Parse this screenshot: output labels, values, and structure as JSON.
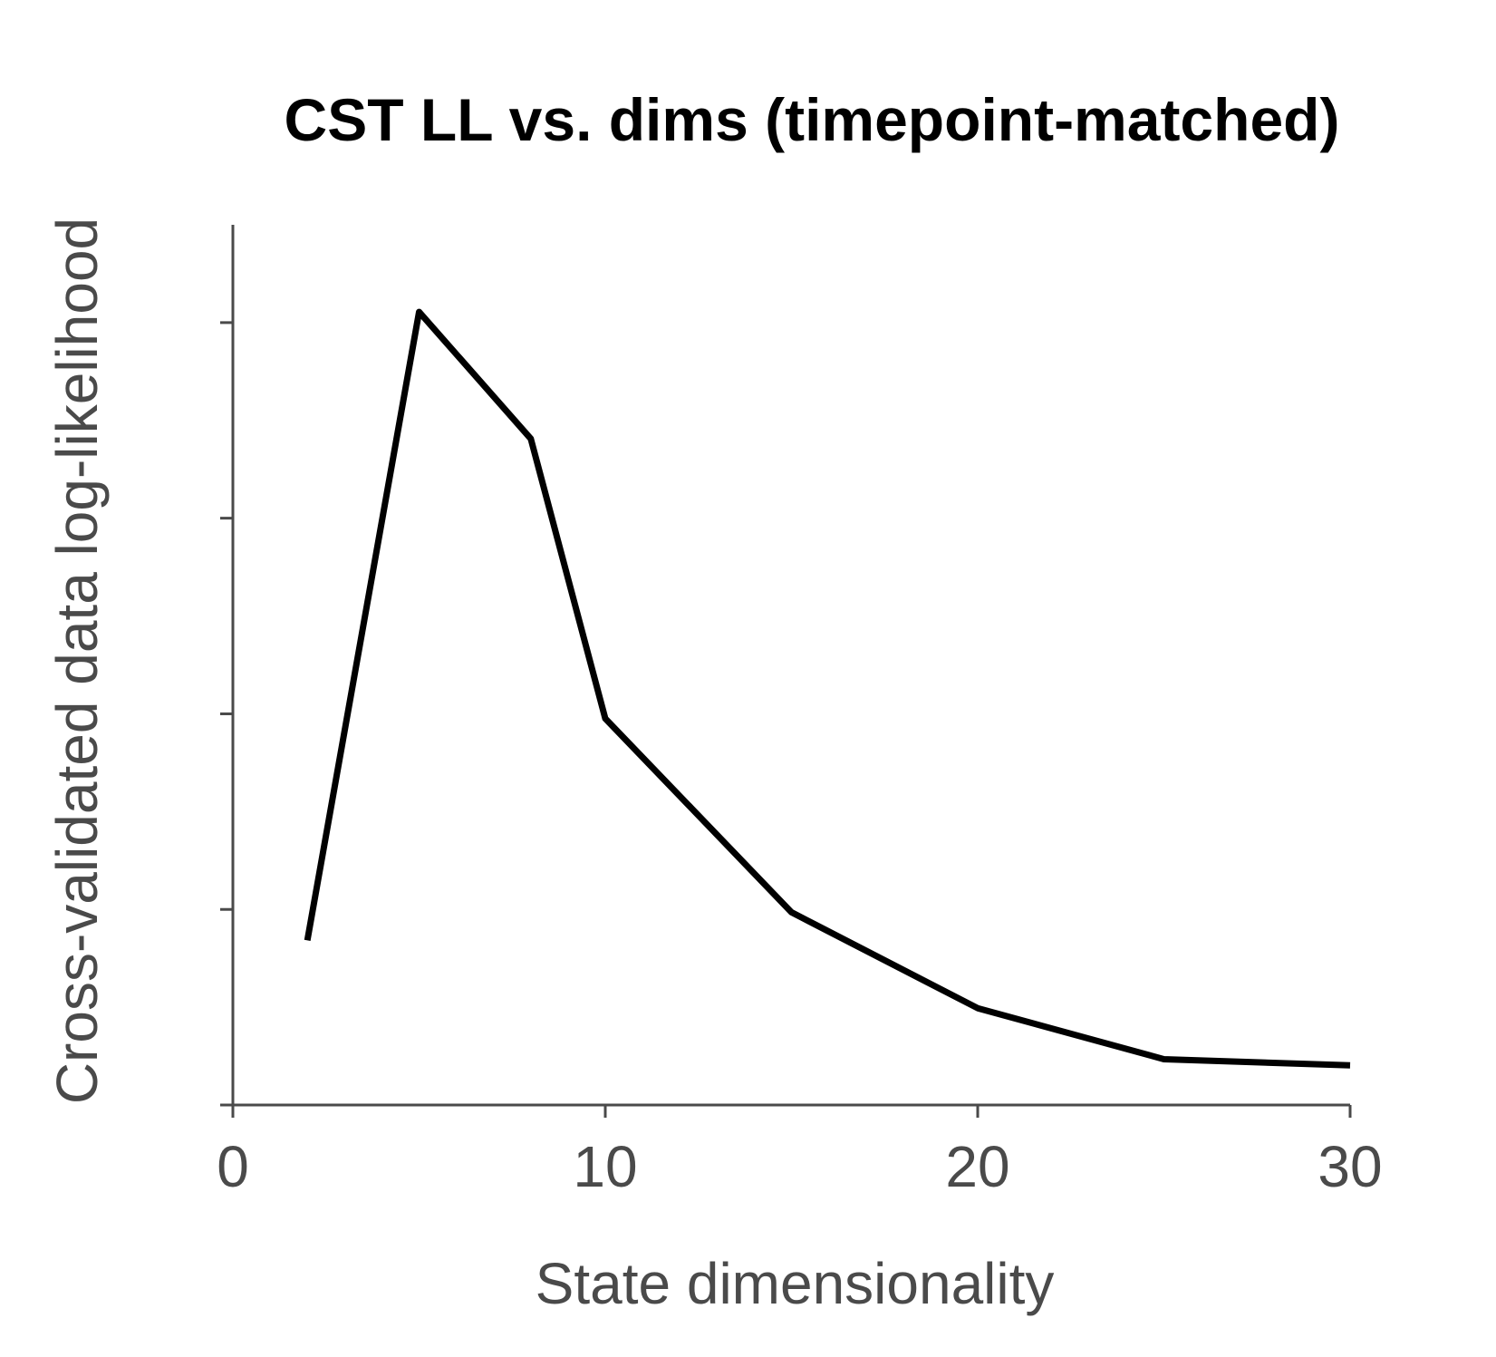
{
  "chart_data": {
    "type": "line",
    "title": "CST LL vs. dims (timepoint-matched)",
    "xlabel": "State dimensionality",
    "ylabel": "Cross-validated data log-likelihood",
    "xlim": [
      0,
      30
    ],
    "ylim": [
      0,
      1
    ],
    "x_ticks": [
      0,
      10,
      20,
      30
    ],
    "y_ticks": [
      0,
      0.2222,
      0.4444,
      0.6667,
      0.8889
    ],
    "y_tick_labels_shown": false,
    "grid": false,
    "series": [
      {
        "name": "",
        "color": "#000000",
        "x": [
          2,
          5,
          8,
          10,
          15,
          20,
          25,
          30
        ],
        "y": [
          0.187,
          0.901,
          0.757,
          0.439,
          0.219,
          0.11,
          0.052,
          0.045
        ]
      }
    ]
  },
  "colors": {
    "line": "#000000",
    "axis": "#4a4a4a",
    "text": "#4a4a4a"
  }
}
